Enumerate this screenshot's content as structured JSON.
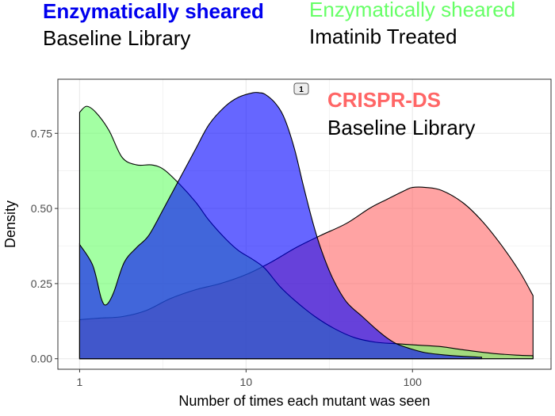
{
  "chart_data": {
    "type": "area",
    "xlabel": "Number of times each mutant was seen",
    "ylabel": "Density",
    "x_scale": "log10",
    "xlim": [
      0.74,
      680
    ],
    "ylim": [
      -0.035,
      0.93
    ],
    "x_ticks": [
      {
        "value": 1,
        "label": "1"
      },
      {
        "value": 10,
        "label": "10"
      },
      {
        "value": 100,
        "label": "100"
      }
    ],
    "y_ticks": [
      {
        "value": 0.0,
        "label": "0.00"
      },
      {
        "value": 0.25,
        "label": "0.25"
      },
      {
        "value": 0.5,
        "label": "0.50"
      },
      {
        "value": 0.75,
        "label": "0.75"
      }
    ],
    "grid": true,
    "panel_background": "#ffffff",
    "grid_color": "#ebebeb",
    "legend": "none",
    "series": [
      {
        "name": "",
        "color": "#ff6666",
        "points": [
          [
            1,
            0.13
          ],
          [
            1.3,
            0.135
          ],
          [
            1.8,
            0.14
          ],
          [
            2.5,
            0.16
          ],
          [
            3.5,
            0.2
          ],
          [
            5,
            0.23
          ],
          [
            7,
            0.25
          ],
          [
            10,
            0.28
          ],
          [
            14,
            0.32
          ],
          [
            20,
            0.37
          ],
          [
            28,
            0.41
          ],
          [
            40,
            0.45
          ],
          [
            55,
            0.5
          ],
          [
            70,
            0.53
          ],
          [
            90,
            0.56
          ],
          [
            100,
            0.57
          ],
          [
            120,
            0.57
          ],
          [
            150,
            0.56
          ],
          [
            200,
            0.52
          ],
          [
            260,
            0.46
          ],
          [
            340,
            0.38
          ],
          [
            440,
            0.29
          ],
          [
            530,
            0.21
          ]
        ]
      },
      {
        "name": "",
        "color": "#66ff66",
        "points": [
          [
            1,
            0.82
          ],
          [
            1.1,
            0.84
          ],
          [
            1.25,
            0.82
          ],
          [
            1.5,
            0.76
          ],
          [
            1.8,
            0.67
          ],
          [
            2.2,
            0.645
          ],
          [
            2.7,
            0.645
          ],
          [
            3.2,
            0.63
          ],
          [
            4,
            0.58
          ],
          [
            5,
            0.52
          ],
          [
            6,
            0.46
          ],
          [
            7.5,
            0.4
          ],
          [
            9,
            0.36
          ],
          [
            11,
            0.33
          ],
          [
            13,
            0.3
          ],
          [
            16,
            0.24
          ],
          [
            20,
            0.19
          ],
          [
            26,
            0.14
          ],
          [
            34,
            0.1
          ],
          [
            45,
            0.07
          ],
          [
            60,
            0.055
          ],
          [
            80,
            0.05
          ],
          [
            110,
            0.045
          ],
          [
            150,
            0.04
          ],
          [
            200,
            0.03
          ],
          [
            300,
            0.018
          ],
          [
            420,
            0.012
          ],
          [
            530,
            0.01
          ]
        ]
      },
      {
        "name": "",
        "color": "#0000ff",
        "points": [
          [
            1,
            0.38
          ],
          [
            1.2,
            0.31
          ],
          [
            1.35,
            0.2
          ],
          [
            1.45,
            0.18
          ],
          [
            1.6,
            0.22
          ],
          [
            1.85,
            0.32
          ],
          [
            2.2,
            0.37
          ],
          [
            2.6,
            0.41
          ],
          [
            3.2,
            0.5
          ],
          [
            4,
            0.6
          ],
          [
            5,
            0.7
          ],
          [
            6,
            0.78
          ],
          [
            7.5,
            0.84
          ],
          [
            9,
            0.87
          ],
          [
            11,
            0.885
          ],
          [
            12,
            0.885
          ],
          [
            13,
            0.88
          ],
          [
            15,
            0.85
          ],
          [
            17,
            0.8
          ],
          [
            19.5,
            0.7
          ],
          [
            22,
            0.58
          ],
          [
            25,
            0.46
          ],
          [
            28,
            0.37
          ],
          [
            33,
            0.27
          ],
          [
            40,
            0.19
          ],
          [
            50,
            0.14
          ],
          [
            60,
            0.1
          ],
          [
            70,
            0.07
          ],
          [
            80,
            0.05
          ],
          [
            95,
            0.035
          ],
          [
            120,
            0.02
          ],
          [
            160,
            0.012
          ],
          [
            200,
            0.008
          ],
          [
            260,
            0.005
          ]
        ]
      }
    ],
    "annotations": {
      "label_1": {
        "title": "Enzymatically sheared",
        "title_color": "#0000ee",
        "subtitle": "Baseline Library"
      },
      "label_2": {
        "title": "Enzymatically sheared",
        "title_color": "#66ff66",
        "subtitle": "Imatinib Treated"
      },
      "label_3": {
        "title": "CRISPR-DS",
        "title_color": "#ff6666",
        "subtitle": "Baseline Library"
      },
      "marker": "1"
    }
  }
}
